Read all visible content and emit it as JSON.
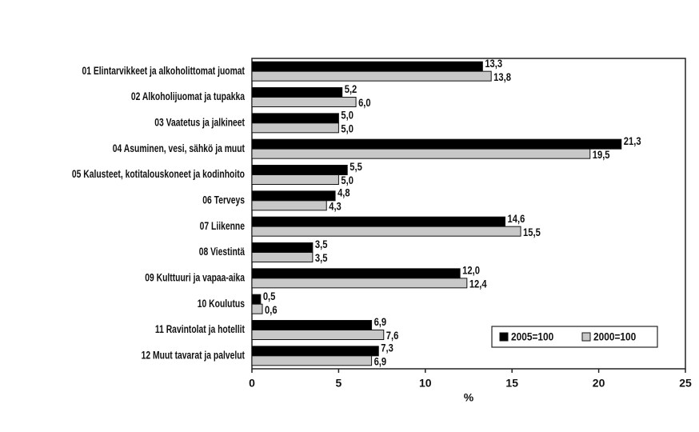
{
  "chart_data": {
    "type": "barh",
    "categories": [
      "01 Elintarvikkeet ja alkoholittomat juomat",
      "02 Alkoholijuomat ja tupakka",
      "03 Vaatetus ja jalkineet",
      "04 Asuminen, vesi, sähkö ja muut",
      "05 Kalusteet, kotitalouskoneet ja kodinhoito",
      "06 Terveys",
      "07 Liikenne",
      "08 Viestintä",
      "09 Kulttuuri ja vapaa-aika",
      "10 Koulutus",
      "11 Ravintolat ja hotellit",
      "12 Muut tavarat ja palvelut"
    ],
    "series": [
      {
        "name": "2005=100",
        "color": "#000000",
        "values": [
          13.3,
          5.2,
          5.0,
          21.3,
          5.5,
          4.8,
          14.6,
          3.5,
          12.0,
          0.5,
          6.9,
          7.3
        ],
        "value_labels": [
          "13,3",
          "5,2",
          "5,0",
          "21,3",
          "5,5",
          "4,8",
          "14,6",
          "3,5",
          "12,0",
          "0,5",
          "6,9",
          "7,3"
        ]
      },
      {
        "name": "2000=100",
        "color": "#c8c8c8",
        "values": [
          13.8,
          6.0,
          5.0,
          19.5,
          5.0,
          4.3,
          15.5,
          3.5,
          12.4,
          0.6,
          7.6,
          6.9
        ],
        "value_labels": [
          "13,8",
          "6,0",
          "5,0",
          "19,5",
          "5,0",
          "4,3",
          "15,5",
          "3,5",
          "12,4",
          "0,6",
          "7,6",
          "6,9"
        ]
      }
    ],
    "xlabel": "%",
    "xlim": [
      0,
      25
    ],
    "xticks": [
      0,
      5,
      10,
      15,
      20,
      25
    ],
    "legend": "lower right"
  }
}
